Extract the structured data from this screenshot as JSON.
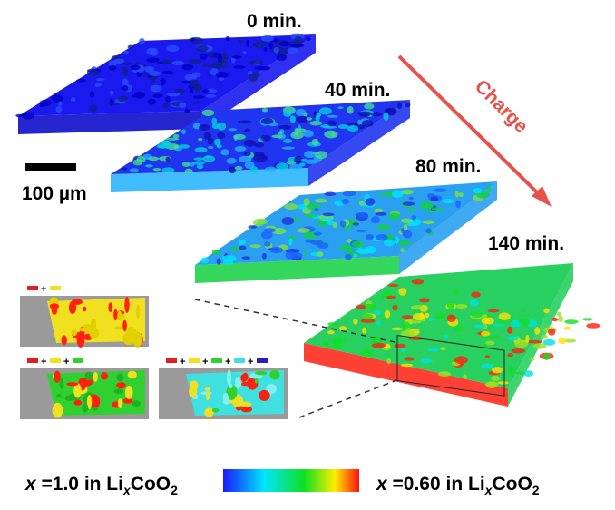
{
  "figure": {
    "times": [
      "0 min.",
      "40 min.",
      "80 min.",
      "140 min."
    ],
    "arrow_label": "Charge",
    "scale_bar": "100 µm",
    "plus": "+",
    "colorbar": {
      "left": {
        "var": "x",
        "eq": " =1.0 in Li",
        "sub": "x",
        "formula": "CoO",
        "sub2": "2"
      },
      "right": {
        "var": "x",
        "eq": " =0.60 in Li",
        "sub": "x",
        "formula": "CoO",
        "sub2": "2"
      }
    }
  }
}
